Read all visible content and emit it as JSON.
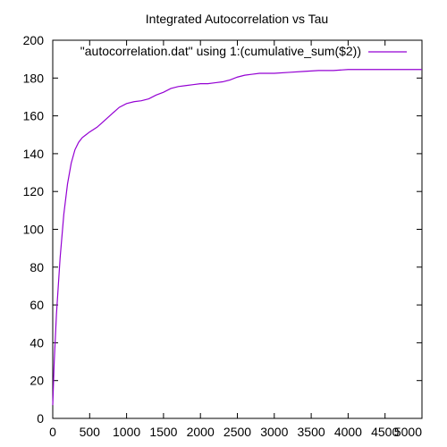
{
  "chart_data": {
    "type": "line",
    "title": "Integrated Autocorrelation vs Tau",
    "xlabel": "",
    "ylabel": "",
    "xlim": [
      0,
      5000
    ],
    "ylim": [
      0,
      200
    ],
    "x_ticks": [
      0,
      500,
      1000,
      1500,
      2000,
      2500,
      3000,
      3500,
      4000,
      4500,
      5000
    ],
    "y_ticks": [
      0,
      20,
      40,
      60,
      80,
      100,
      120,
      140,
      160,
      180,
      200
    ],
    "grid": false,
    "legend_position": "top-right",
    "series": [
      {
        "name": "\"autocorrelation.dat\" using 1:(cumulative_sum($2))",
        "color": "#9400D3",
        "x": [
          0,
          20,
          50,
          100,
          150,
          200,
          250,
          300,
          350,
          400,
          450,
          500,
          600,
          700,
          800,
          900,
          1000,
          1100,
          1200,
          1300,
          1400,
          1500,
          1600,
          1700,
          1800,
          1900,
          2000,
          2100,
          2200,
          2300,
          2400,
          2500,
          2600,
          2700,
          2800,
          2900,
          3000,
          3200,
          3400,
          3600,
          3800,
          4000,
          4200,
          4400,
          4600,
          4800,
          5000
        ],
        "y": [
          7,
          30,
          55,
          85,
          108,
          124,
          135,
          142,
          146,
          148.5,
          150,
          151.5,
          154,
          157.5,
          161,
          164.5,
          166.5,
          167.5,
          168,
          169,
          171,
          172.5,
          174.5,
          175.5,
          176,
          176.5,
          177,
          177,
          177.5,
          178,
          179,
          180.5,
          181.5,
          182,
          182.5,
          182.5,
          182.5,
          183,
          183.5,
          184,
          184,
          184.5,
          184.5,
          184.5,
          184.5,
          184.5,
          184.5
        ]
      }
    ]
  }
}
